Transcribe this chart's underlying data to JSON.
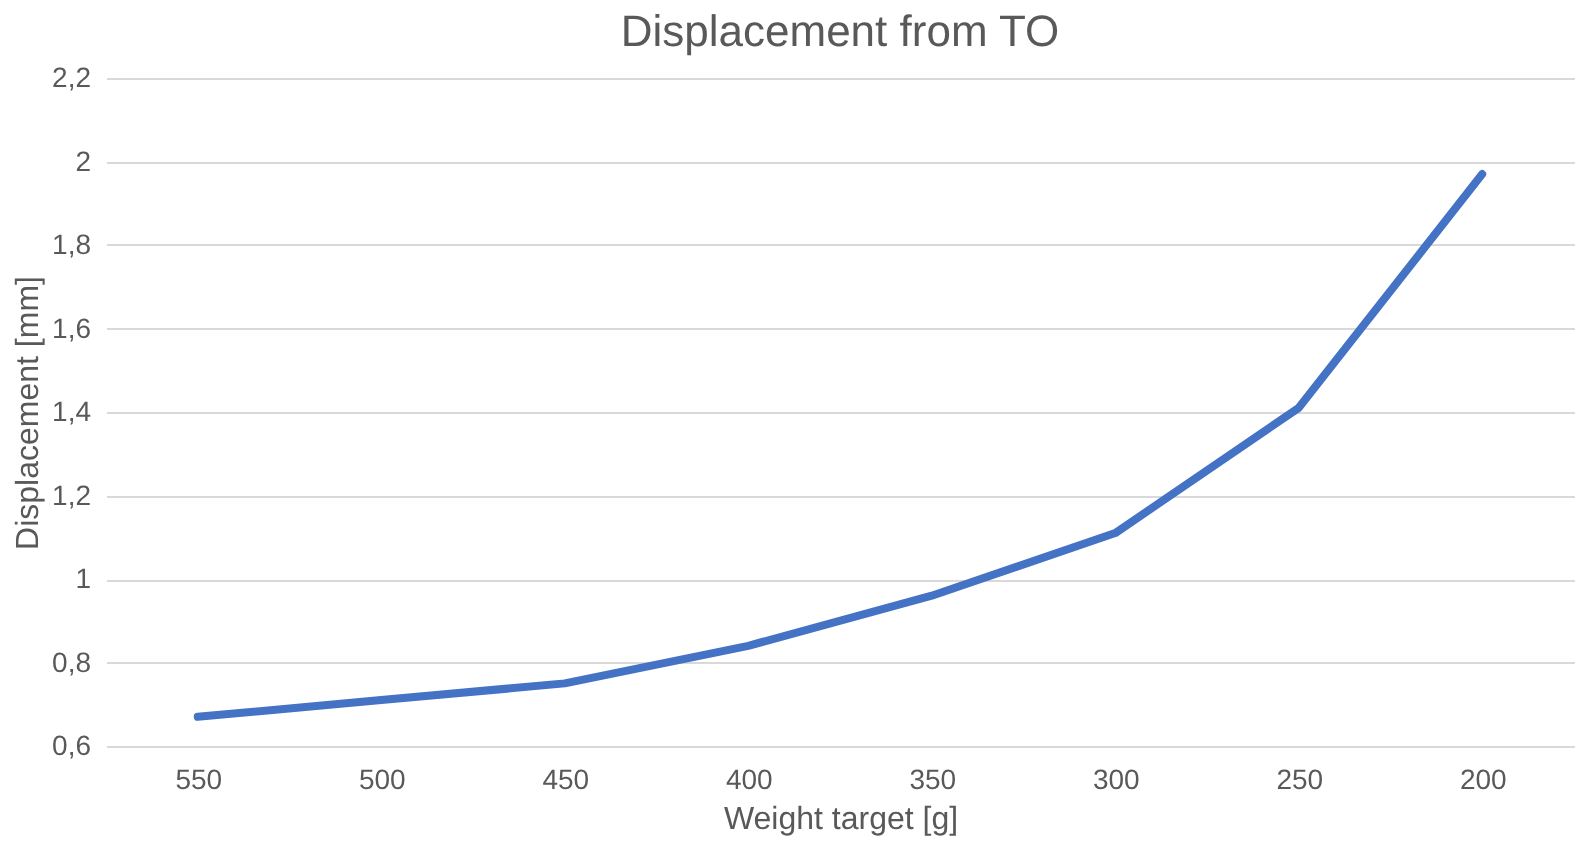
{
  "chart_data": {
    "type": "line",
    "title": "Displacement from TO",
    "xlabel": "Weight target [g]",
    "ylabel": "Displacement [mm]",
    "categories": [
      "550",
      "500",
      "450",
      "400",
      "350",
      "300",
      "250",
      "200"
    ],
    "series": [
      {
        "color": "#4472c4",
        "values": [
          0.67,
          0.71,
          0.75,
          0.84,
          0.96,
          1.11,
          1.41,
          1.97
        ]
      }
    ],
    "ylim": [
      0.6,
      2.2
    ],
    "yticks": [
      {
        "value": 0.6,
        "label": "0,6"
      },
      {
        "value": 0.8,
        "label": "0,8"
      },
      1,
      {
        "value": 1.2,
        "label": "1,2"
      },
      {
        "value": 1.4,
        "label": "1,4"
      },
      {
        "value": 1.6,
        "label": "1,6"
      },
      {
        "value": 1.8,
        "label": "1,8"
      },
      2,
      {
        "value": 2.2,
        "label": "2,2"
      }
    ],
    "grid": "y",
    "legend": false,
    "marker": "none",
    "line_style": "solid"
  }
}
